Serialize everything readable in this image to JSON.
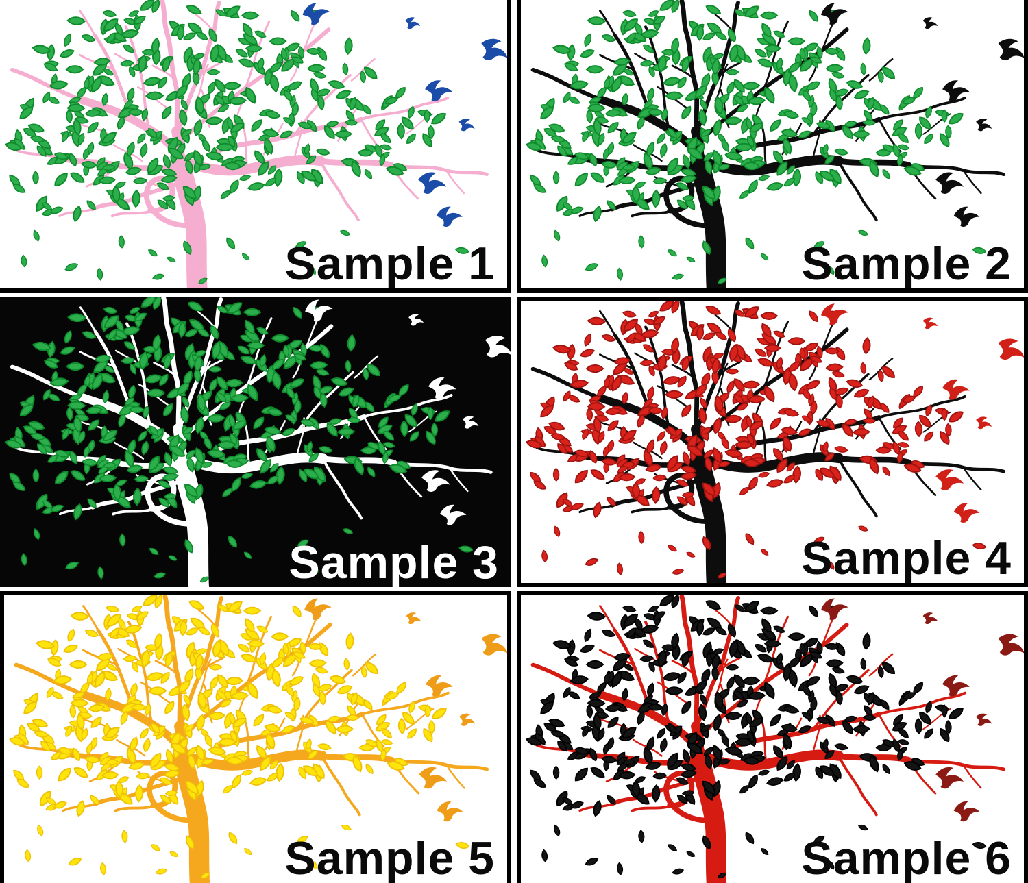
{
  "samples": [
    {
      "label": "Sample 1",
      "background": "#ffffff",
      "trunk": "#f5aed0",
      "leaves": "#2cae4c",
      "leaf_outline": "#0e8a2b",
      "birds": "#1b4da8",
      "label_color": "#0a0a0a"
    },
    {
      "label": "Sample 2",
      "background": "#ffffff",
      "trunk": "#0d0d0d",
      "leaves": "#2cae4c",
      "leaf_outline": "#0e8a2b",
      "birds": "#0d0d0d",
      "label_color": "#0a0a0a"
    },
    {
      "label": "Sample 3",
      "background": "#060606",
      "trunk": "#ffffff",
      "leaves": "#2cae4c",
      "leaf_outline": "#0e8a2b",
      "birds": "#ffffff",
      "label_color": "#ffffff"
    },
    {
      "label": "Sample 4",
      "background": "#ffffff",
      "trunk": "#0d0d0d",
      "leaves": "#d8221b",
      "leaf_outline": "#9e1410",
      "birds": "#d02018",
      "label_color": "#0a0a0a"
    },
    {
      "label": "Sample 5",
      "background": "#ffffff",
      "trunk": "#f5a71d",
      "leaves": "#ffe40c",
      "leaf_outline": "#eec109",
      "birds": "#ef9d18",
      "label_color": "#0a0a0a"
    },
    {
      "label": "Sample 6",
      "background": "#ffffff",
      "trunk": "#d61b12",
      "leaves": "#141414",
      "leaf_outline": "#000000",
      "birds": "#8c1a14",
      "label_color": "#0a0a0a"
    }
  ]
}
